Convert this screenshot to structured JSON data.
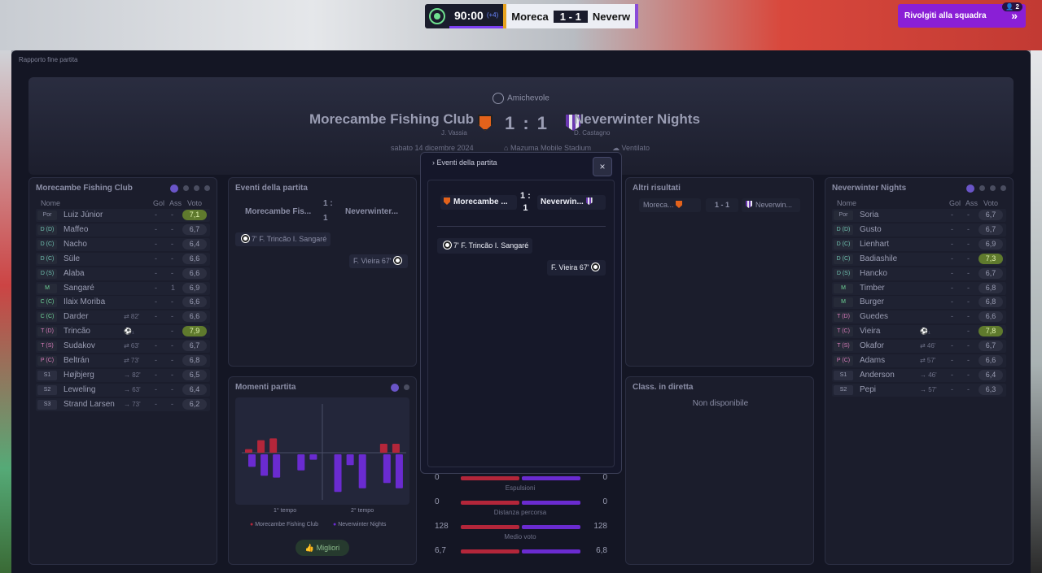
{
  "hud": {
    "time": "90:00",
    "added": "(+4)",
    "home_short": "Moreca",
    "score": "1 - 1",
    "away_short": "Neverw",
    "squad_button": "Rivolgiti alla squadra",
    "squad_badge": "2"
  },
  "window_title": "Rapporto fine partita",
  "header": {
    "competition": "Amichevole",
    "home_team": "Morecambe Fishing Club",
    "home_manager": "J. Vassia",
    "away_team": "Neverwinter Nights",
    "away_manager": "D. Castagno",
    "score": "1 : 1",
    "date": "sabato 14 dicembre 2024",
    "stadium": "Mazuma Mobile Stadium",
    "weather": "Ventilato"
  },
  "lineup_headers": {
    "name": "Nome",
    "goals": "Gol",
    "assists": "Ass",
    "rating": "Voto"
  },
  "home_lineup": {
    "title": "Morecambe Fishing Club",
    "players": [
      {
        "pos": "Por",
        "cls": "p-por",
        "name": "Luiz Júnior",
        "sub": "",
        "g": "-",
        "a": "-",
        "r": "7,1",
        "hi": true
      },
      {
        "pos": "D (D)",
        "cls": "p-def",
        "name": "Maffeo",
        "sub": "",
        "g": "-",
        "a": "-",
        "r": "6,7",
        "hi": false
      },
      {
        "pos": "D (C)",
        "cls": "p-def",
        "name": "Nacho",
        "sub": "",
        "g": "-",
        "a": "-",
        "r": "6,4",
        "hi": false
      },
      {
        "pos": "D (C)",
        "cls": "p-def",
        "name": "Süle",
        "sub": "",
        "g": "-",
        "a": "-",
        "r": "6,6",
        "hi": false
      },
      {
        "pos": "D (S)",
        "cls": "p-def",
        "name": "Alaba",
        "sub": "",
        "g": "-",
        "a": "-",
        "r": "6,6",
        "hi": false
      },
      {
        "pos": "M",
        "cls": "p-mid",
        "name": "Sangaré",
        "sub": "",
        "g": "-",
        "a": "1",
        "r": "6,9",
        "hi": false
      },
      {
        "pos": "C (C)",
        "cls": "p-mid",
        "name": "Ilaix Moriba",
        "sub": "",
        "g": "-",
        "a": "-",
        "r": "6,6",
        "hi": false
      },
      {
        "pos": "C (C)",
        "cls": "p-mid",
        "name": "Darder",
        "sub": "⇄ 82'",
        "g": "-",
        "a": "-",
        "r": "6,6",
        "hi": false
      },
      {
        "pos": "T (D)",
        "cls": "p-att",
        "name": "Trincão",
        "sub": "⚽₁",
        "g": "",
        "a": "-",
        "r": "7,9",
        "hi": true
      },
      {
        "pos": "T (S)",
        "cls": "p-att",
        "name": "Sudakov",
        "sub": "⇄ 63'",
        "g": "-",
        "a": "-",
        "r": "6,7",
        "hi": false
      },
      {
        "pos": "P (C)",
        "cls": "p-att",
        "name": "Beltrán",
        "sub": "⇄ 73'",
        "g": "-",
        "a": "-",
        "r": "6,8",
        "hi": false
      },
      {
        "pos": "S1",
        "cls": "p-sub",
        "name": "Højbjerg",
        "sub": "→ 82'",
        "g": "-",
        "a": "-",
        "r": "6,5",
        "hi": false
      },
      {
        "pos": "S2",
        "cls": "p-sub",
        "name": "Leweling",
        "sub": "→ 63'",
        "g": "-",
        "a": "-",
        "r": "6,4",
        "hi": false
      },
      {
        "pos": "S3",
        "cls": "p-sub",
        "name": "Strand Larsen",
        "sub": "→ 73'",
        "g": "-",
        "a": "-",
        "r": "6,2",
        "hi": false
      }
    ]
  },
  "away_lineup": {
    "title": "Neverwinter Nights",
    "players": [
      {
        "pos": "Por",
        "cls": "p-por",
        "name": "Soria",
        "sub": "",
        "g": "-",
        "a": "-",
        "r": "6,7",
        "hi": false
      },
      {
        "pos": "D (D)",
        "cls": "p-def",
        "name": "Gusto",
        "sub": "",
        "g": "-",
        "a": "-",
        "r": "6,7",
        "hi": false
      },
      {
        "pos": "D (C)",
        "cls": "p-def",
        "name": "Lienhart",
        "sub": "",
        "g": "-",
        "a": "-",
        "r": "6,9",
        "hi": false
      },
      {
        "pos": "D (C)",
        "cls": "p-def",
        "name": "Badiashile",
        "sub": "",
        "g": "-",
        "a": "-",
        "r": "7,3",
        "hi": true
      },
      {
        "pos": "D (S)",
        "cls": "p-def",
        "name": "Hancko",
        "sub": "",
        "g": "-",
        "a": "-",
        "r": "6,7",
        "hi": false
      },
      {
        "pos": "M",
        "cls": "p-mid",
        "name": "Timber",
        "sub": "",
        "g": "-",
        "a": "-",
        "r": "6,8",
        "hi": false
      },
      {
        "pos": "M",
        "cls": "p-mid",
        "name": "Burger",
        "sub": "",
        "g": "-",
        "a": "-",
        "r": "6,8",
        "hi": false
      },
      {
        "pos": "T (D)",
        "cls": "p-att",
        "name": "Guedes",
        "sub": "",
        "g": "-",
        "a": "-",
        "r": "6,6",
        "hi": false
      },
      {
        "pos": "T (C)",
        "cls": "p-att",
        "name": "Vieira",
        "sub": "⚽₁",
        "g": "",
        "a": "-",
        "r": "7,8",
        "hi": true
      },
      {
        "pos": "T (S)",
        "cls": "p-att",
        "name": "Okafor",
        "sub": "⇄ 46'",
        "g": "-",
        "a": "-",
        "r": "6,7",
        "hi": false
      },
      {
        "pos": "P (C)",
        "cls": "p-att",
        "name": "Adams",
        "sub": "⇄ 57'",
        "g": "-",
        "a": "-",
        "r": "6,6",
        "hi": false
      },
      {
        "pos": "S1",
        "cls": "p-sub",
        "name": "Anderson",
        "sub": "→ 46'",
        "g": "-",
        "a": "-",
        "r": "6,4",
        "hi": false
      },
      {
        "pos": "S2",
        "cls": "p-sub",
        "name": "Pepi",
        "sub": "→ 57'",
        "g": "-",
        "a": "-",
        "r": "6,3",
        "hi": false
      }
    ]
  },
  "events_panel": {
    "title": "Eventi della partita",
    "home": "Morecambe Fis...",
    "away": "Neverwinter...",
    "score_top": "1 :",
    "score_bottom": "1",
    "event_home": "7' F. Trincão I. Sangaré",
    "event_away": "F. Vieira 67'"
  },
  "moments_panel": {
    "title": "Momenti partita",
    "first_half": "1° tempo",
    "second_half": "2° tempo",
    "legend_home": "Morecambe Fishing Club",
    "legend_away": "Neverwinter Nights",
    "best_button": "Migliori"
  },
  "moments_chart": {
    "home_bars": [
      2,
      7,
      8,
      0,
      0,
      0,
      0,
      0,
      0,
      0,
      0,
      5,
      5
    ],
    "away_bars": [
      7,
      12,
      13,
      0,
      9,
      3,
      0,
      21,
      6,
      19,
      0,
      16,
      19
    ]
  },
  "other_results": {
    "title": "Altri risultati",
    "home": "Moreca...",
    "score": "1 - 1",
    "away": "Neverwin..."
  },
  "live_table": {
    "title": "Class. in diretta",
    "text": "Non disponibile"
  },
  "stats": [
    {
      "label": "",
      "home": "0",
      "away": "0",
      "hp": 0.5,
      "ap": 0.5
    },
    {
      "label": "Espulsioni",
      "home": "0",
      "away": "0",
      "hp": 0.5,
      "ap": 0.5
    },
    {
      "label": "Distanza percorsa",
      "home": "128",
      "away": "128",
      "hp": 0.5,
      "ap": 0.5
    },
    {
      "label": "Medio voto",
      "home": "6,7",
      "away": "6,8",
      "hp": 0.5,
      "ap": 0.5
    }
  ],
  "modal": {
    "title": "Eventi della partita",
    "close": "×",
    "home": "Morecambe ...",
    "away": "Neverwin...",
    "score_top": "1 :",
    "score_bottom": "1",
    "event_home": "7' F. Trincão I. Sangaré",
    "event_away": "F. Vieira 67'"
  },
  "colors": {
    "home": "#b3263a",
    "away": "#6a2bd0",
    "accent": "#8a1fd6"
  }
}
